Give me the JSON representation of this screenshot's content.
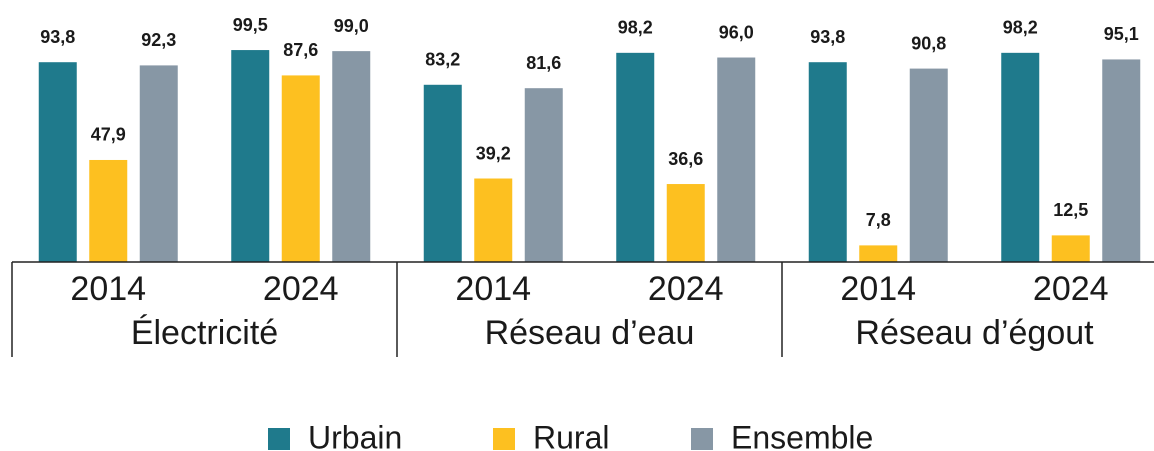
{
  "chart_data": {
    "type": "bar",
    "categories": [
      "2014",
      "2024",
      "2014",
      "2024",
      "2014",
      "2024"
    ],
    "category_groups": [
      "Électricité",
      "Réseau d’eau",
      "Réseau d’égout"
    ],
    "ylim": [
      0,
      100
    ],
    "series": [
      {
        "name": "Urbain",
        "color": "#1f7a8c",
        "values": [
          93.8,
          99.5,
          83.2,
          98.2,
          93.8,
          98.2
        ],
        "value_labels": [
          "93,8",
          "99,5",
          "83,2",
          "98,2",
          "93,8",
          "98,2"
        ]
      },
      {
        "name": "Rural",
        "color": "#fdc020",
        "values": [
          47.9,
          87.6,
          39.2,
          36.6,
          7.8,
          12.5
        ],
        "value_labels": [
          "47,9",
          "87,6",
          "39,2",
          "36,6",
          "7,8",
          "12,5"
        ]
      },
      {
        "name": "Ensemble",
        "color": "#8797a5",
        "values": [
          92.3,
          99.0,
          81.6,
          96.0,
          90.8,
          95.1
        ],
        "value_labels": [
          "92,3",
          "99,0",
          "81,6",
          "96,0",
          "90,8",
          "95,1"
        ]
      }
    ]
  }
}
